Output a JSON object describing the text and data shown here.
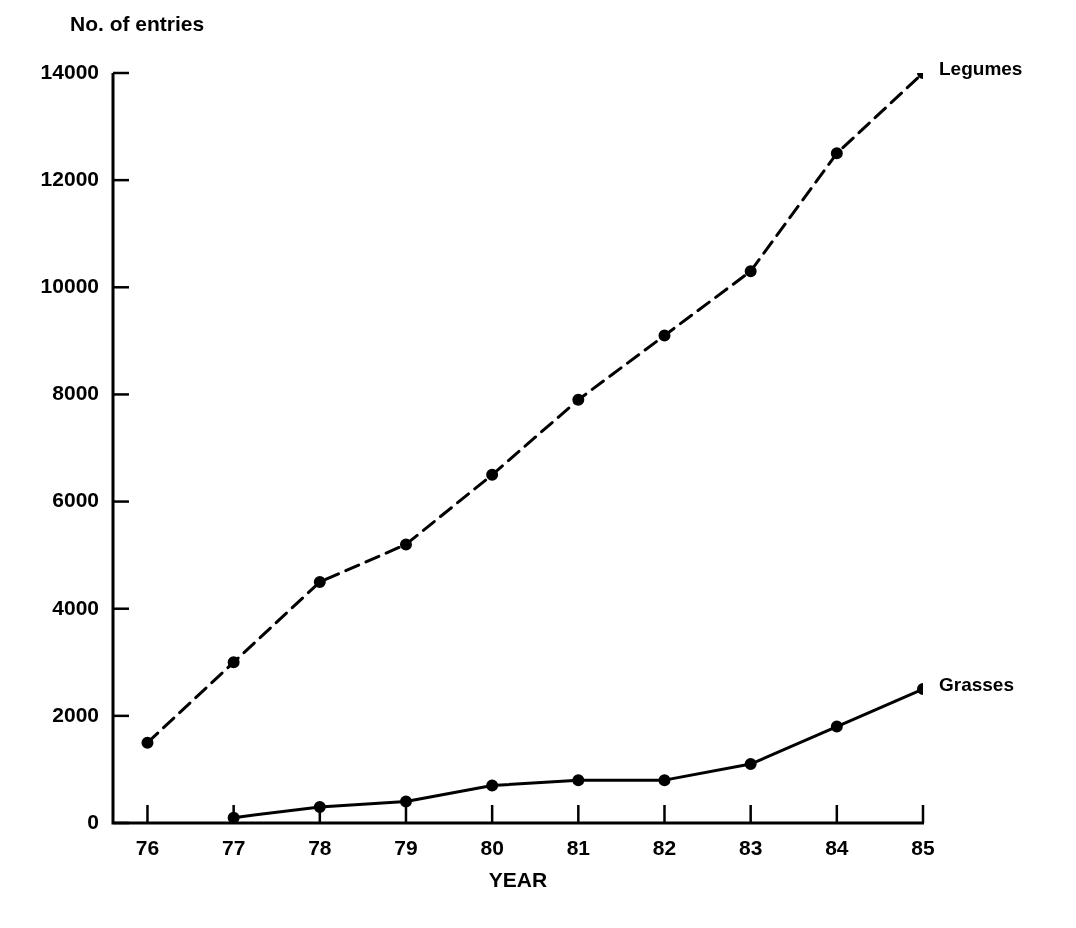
{
  "chart_data": {
    "type": "line",
    "xlabel": "YEAR",
    "ylabel": "No. of entries",
    "x": [
      76,
      77,
      78,
      79,
      80,
      81,
      82,
      83,
      84,
      85
    ],
    "xlim": [
      75.6,
      85
    ],
    "xticks": [
      76,
      77,
      78,
      79,
      80,
      81,
      82,
      83,
      84,
      85
    ],
    "ylim": [
      0,
      14000
    ],
    "yticks": [
      0,
      2000,
      4000,
      6000,
      8000,
      10000,
      12000,
      14000
    ],
    "grid": false,
    "legend": false,
    "marker": "circle",
    "series": [
      {
        "name": "Legumes",
        "color": "#000000",
        "line_style": "dashed",
        "values": [
          1500,
          3000,
          4500,
          5200,
          6500,
          7900,
          9100,
          10300,
          12500,
          14000
        ]
      },
      {
        "name": "Grasses",
        "color": "#000000",
        "line_style": "solid",
        "values": [
          null,
          100,
          300,
          400,
          700,
          800,
          800,
          1100,
          1800,
          2500
        ]
      }
    ]
  }
}
